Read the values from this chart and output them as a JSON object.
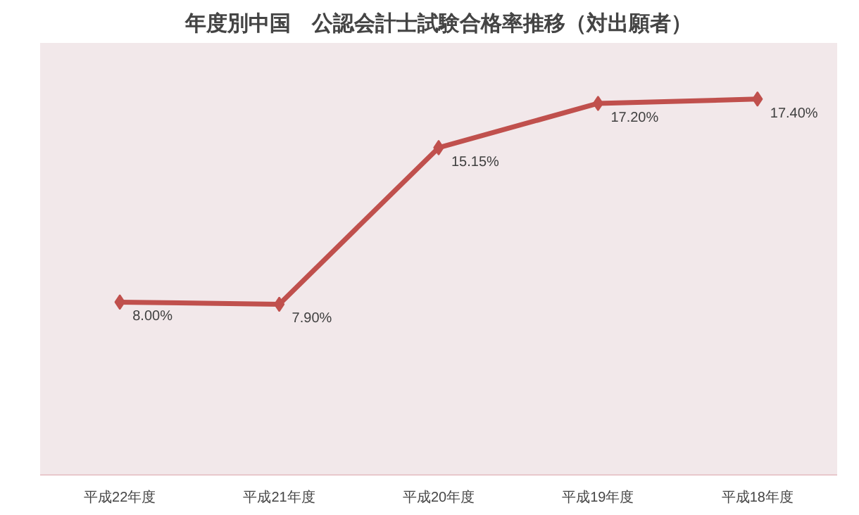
{
  "chart_data": {
    "type": "line",
    "title": "年度別中国　公認会計士試験合格率推移（対出願者）",
    "categories": [
      "平成22年度",
      "平成21年度",
      "平成20年度",
      "平成19年度",
      "平成18年度"
    ],
    "series": [
      {
        "color": "#c0504d",
        "values": [
          8.0,
          7.9,
          15.15,
          17.2,
          17.4
        ],
        "value_labels": [
          "8.00%",
          "7.90%",
          "15.15%",
          "17.20%",
          "17.40%"
        ]
      }
    ],
    "ylim": [
      0,
      20
    ],
    "marker": "diamond",
    "line_style": "solid",
    "grid": false,
    "tick_labels": "x"
  }
}
